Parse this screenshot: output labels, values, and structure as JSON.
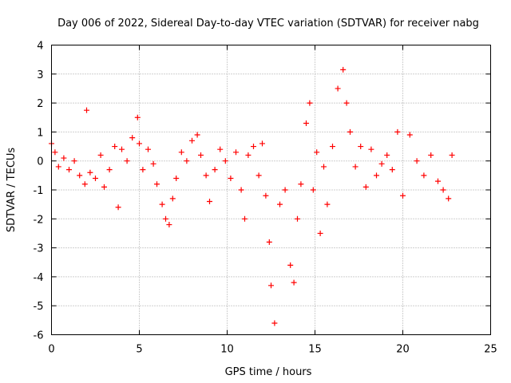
{
  "chart_data": {
    "type": "scatter",
    "title": "Day 006 of 2022, Sidereal Day-to-day VTEC variation (SDTVAR) for receiver nabg",
    "xlabel": "GPS time / hours",
    "ylabel": "SDTVAR / TECUs",
    "xlim": [
      0,
      25
    ],
    "ylim": [
      -6,
      4
    ],
    "xticks": [
      0,
      5,
      10,
      15,
      20,
      25
    ],
    "yticks": [
      -6,
      -5,
      -4,
      -3,
      -2,
      -1,
      0,
      1,
      2,
      3,
      4
    ],
    "grid": true,
    "marker": "+",
    "color": "#ff0000",
    "series": [
      {
        "name": "SDTVAR",
        "x": [
          0.0,
          0.2,
          0.4,
          0.7,
          1.0,
          1.3,
          1.6,
          1.9,
          2.0,
          2.2,
          2.5,
          2.8,
          3.0,
          3.3,
          3.6,
          3.8,
          4.0,
          4.3,
          4.6,
          4.9,
          5.0,
          5.2,
          5.5,
          5.8,
          6.0,
          6.3,
          6.5,
          6.7,
          6.9,
          7.1,
          7.4,
          7.7,
          8.0,
          8.3,
          8.5,
          8.8,
          9.0,
          9.3,
          9.6,
          9.9,
          10.2,
          10.5,
          10.8,
          11.0,
          11.2,
          11.5,
          11.8,
          12.0,
          12.2,
          12.4,
          12.5,
          12.7,
          13.0,
          13.3,
          13.6,
          13.8,
          14.0,
          14.2,
          14.5,
          14.7,
          14.9,
          15.1,
          15.3,
          15.5,
          15.7,
          16.0,
          16.3,
          16.6,
          16.8,
          17.0,
          17.3,
          17.6,
          17.9,
          18.2,
          18.5,
          18.8,
          19.1,
          19.4,
          19.7,
          20.0,
          20.4,
          20.8,
          21.2,
          21.6,
          22.0,
          22.3,
          22.6,
          22.8
        ],
        "y": [
          0.6,
          0.3,
          -0.2,
          0.1,
          -0.3,
          0.0,
          -0.5,
          -0.8,
          1.75,
          -0.4,
          -0.6,
          0.2,
          -0.9,
          -0.3,
          0.5,
          -1.6,
          0.4,
          0.0,
          0.8,
          1.5,
          0.6,
          -0.3,
          0.4,
          -0.1,
          -0.8,
          -1.5,
          -2.0,
          -2.2,
          -1.3,
          -0.6,
          0.3,
          0.0,
          0.7,
          0.9,
          0.2,
          -0.5,
          -1.4,
          -0.3,
          0.4,
          0.0,
          -0.6,
          0.3,
          -1.0,
          -2.0,
          0.2,
          0.5,
          -0.5,
          0.6,
          -1.2,
          -2.8,
          -4.3,
          -5.6,
          -1.5,
          -1.0,
          -3.6,
          -4.2,
          -2.0,
          -0.8,
          1.3,
          2.0,
          -1.0,
          0.3,
          -2.5,
          -0.2,
          -1.5,
          0.5,
          2.5,
          3.15,
          2.0,
          1.0,
          -0.2,
          0.5,
          -0.9,
          0.4,
          -0.5,
          -0.1,
          0.2,
          -0.3,
          1.0,
          -1.2,
          0.9,
          0.0,
          -0.5,
          0.2,
          -0.7,
          -1.0,
          -1.3,
          0.2
        ]
      }
    ]
  }
}
